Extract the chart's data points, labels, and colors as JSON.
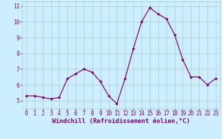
{
  "x": [
    0,
    1,
    2,
    3,
    4,
    5,
    6,
    7,
    8,
    9,
    10,
    11,
    12,
    13,
    14,
    15,
    16,
    17,
    18,
    19,
    20,
    21,
    22,
    23
  ],
  "y": [
    5.3,
    5.3,
    5.2,
    5.1,
    5.2,
    6.4,
    6.7,
    7.0,
    6.8,
    6.2,
    5.3,
    4.8,
    6.4,
    8.3,
    10.0,
    10.9,
    10.5,
    10.2,
    9.2,
    7.6,
    6.5,
    6.5,
    6.0,
    6.4
  ],
  "line_color": "#800080",
  "marker": "D",
  "marker_size": 1.8,
  "bg_color": "#cceeff",
  "grid_color": "#aacccc",
  "xlabel": "Windchill (Refroidissement éolien,°C)",
  "xlim": [
    -0.5,
    23.5
  ],
  "ylim": [
    4.5,
    11.3
  ],
  "yticks": [
    5,
    6,
    7,
    8,
    9,
    10,
    11
  ],
  "xtick_labels": [
    "0",
    "1",
    "2",
    "3",
    "4",
    "5",
    "6",
    "7",
    "8",
    "9",
    "10",
    "11",
    "12",
    "13",
    "14",
    "15",
    "16",
    "17",
    "18",
    "19",
    "20",
    "21",
    "22",
    "23"
  ],
  "tick_color": "#800080",
  "label_color": "#800080",
  "font_size": 5.5,
  "xlabel_fontsize": 6.5,
  "linewidth": 0.9
}
